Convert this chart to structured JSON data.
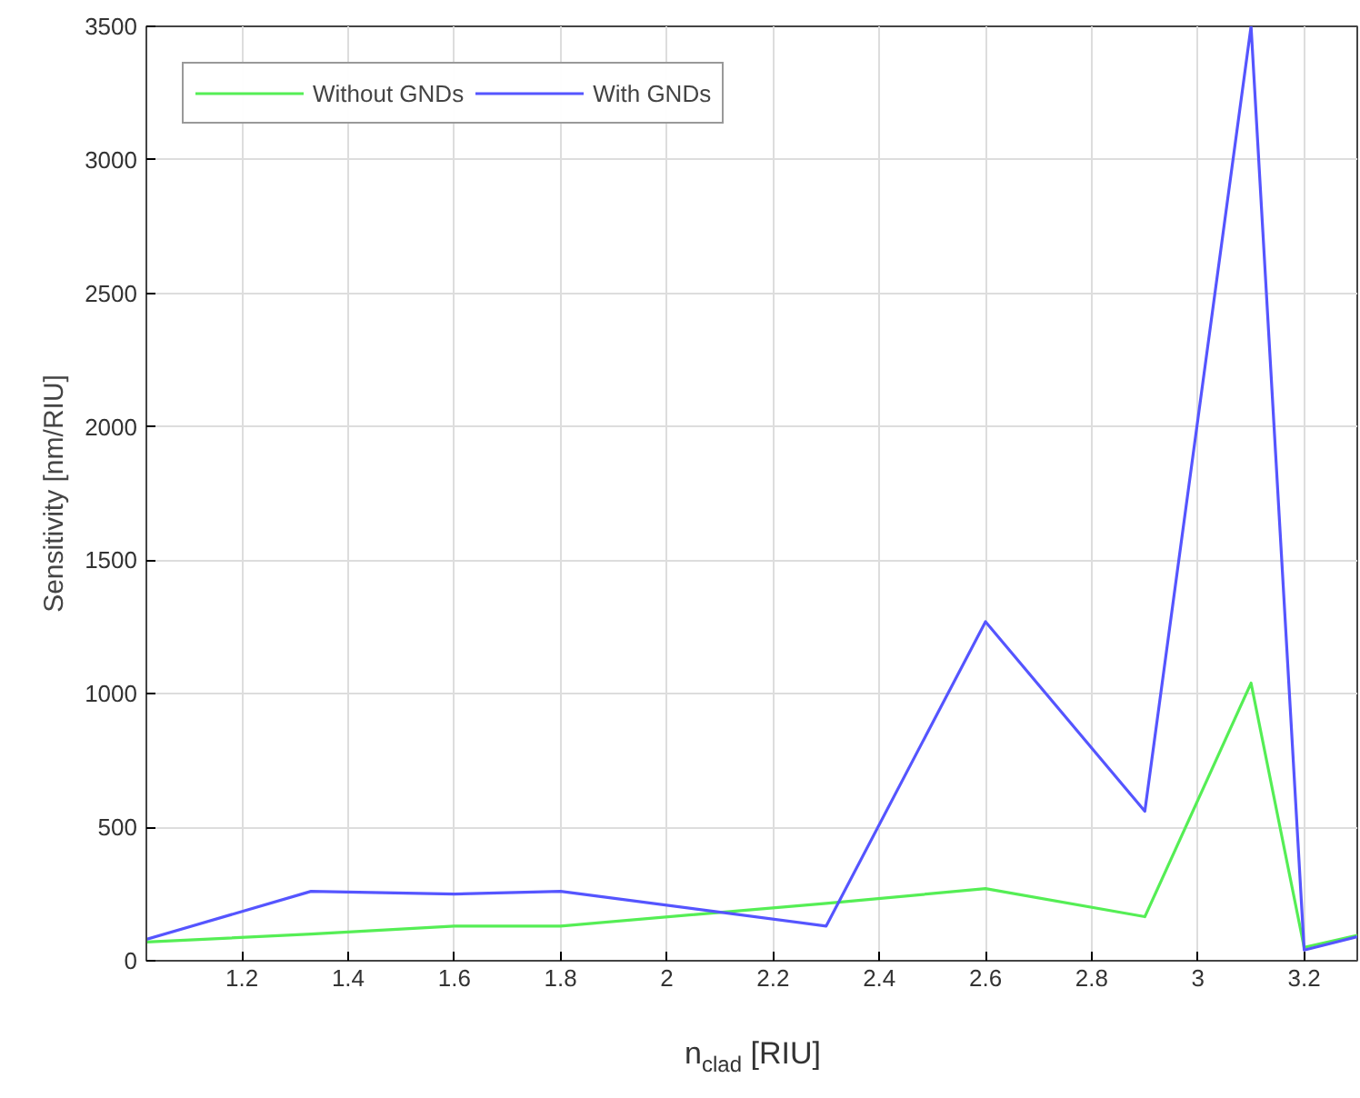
{
  "chart_data": {
    "type": "line",
    "xlabel": "n$_{clad}$ [RIU]",
    "ylabel": "Sensitivity [nm/RIU]",
    "x": [
      1.02,
      1.33,
      1.6,
      1.8,
      2.3,
      2.6,
      2.9,
      3.1,
      3.2,
      3.3
    ],
    "series": [
      {
        "name": "Without GNDs",
        "color": "#55ee55",
        "values": [
          70,
          100,
          130,
          130,
          215,
          270,
          165,
          1040,
          50,
          95
        ]
      },
      {
        "name": "With GNDs",
        "color": "#5555ff",
        "values": [
          80,
          260,
          250,
          260,
          130,
          1270,
          560,
          3500,
          40,
          90
        ]
      }
    ],
    "xlim": [
      1.02,
      3.3
    ],
    "ylim": [
      0,
      3500
    ],
    "xticks": [
      1.2,
      1.4,
      1.6,
      1.8,
      2,
      2.2,
      2.4,
      2.6,
      2.8,
      3,
      3.2
    ],
    "yticks": [
      0,
      500,
      1000,
      1500,
      2000,
      2500,
      3000,
      3500
    ],
    "grid": true,
    "legend": "top left",
    "line_style": "solid",
    "marker": "none"
  }
}
